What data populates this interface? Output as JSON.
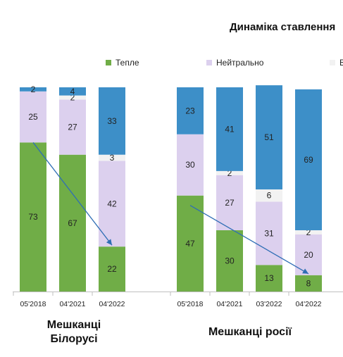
{
  "chart_data": {
    "type": "bar",
    "stacked": true,
    "title": "Динаміка ставлення",
    "legend": {
      "placement": "top",
      "items": [
        {
          "key": "warm",
          "label": "Тепле",
          "color": "#70ad47"
        },
        {
          "key": "neutral",
          "label": "Нейтрально",
          "color": "#dcd0ee"
        },
        {
          "key": "other",
          "label": "В",
          "color": "#f2f2f2"
        }
      ]
    },
    "groups": [
      {
        "name_lines": [
          "Мешканці",
          "Білорусі"
        ],
        "categories": [
          "05'2018",
          "04'2021",
          "04'2022"
        ],
        "series": [
          {
            "key": "warm",
            "color": "#70ad47",
            "values": [
              73,
              67,
              22
            ]
          },
          {
            "key": "neutral",
            "color": "#dcd0ee",
            "values": [
              25,
              27,
              42
            ]
          },
          {
            "key": "other",
            "color": "#f2f2f2",
            "values": [
              0,
              2,
              3
            ]
          },
          {
            "key": "cold",
            "color": "#3d8fc8",
            "values": [
              2,
              4,
              33
            ]
          }
        ],
        "trend": {
          "from": "05'2018",
          "to": "04'2022"
        }
      },
      {
        "name_lines": [
          "Мешканці росії"
        ],
        "categories": [
          "05'2018",
          "04'2021",
          "03'2022",
          "04'2022"
        ],
        "series": [
          {
            "key": "warm",
            "color": "#70ad47",
            "values": [
              47,
              30,
              13,
              8
            ]
          },
          {
            "key": "neutral",
            "color": "#dcd0ee",
            "values": [
              30,
              27,
              31,
              20
            ]
          },
          {
            "key": "other",
            "color": "#f2f2f2",
            "values": [
              0,
              2,
              6,
              2
            ]
          },
          {
            "key": "cold",
            "color": "#3d8fc8",
            "values": [
              23,
              41,
              51,
              69
            ]
          }
        ],
        "trend": {
          "from": "05'2018",
          "to": "04'2022"
        }
      }
    ],
    "ylim": [
      0,
      100
    ]
  }
}
